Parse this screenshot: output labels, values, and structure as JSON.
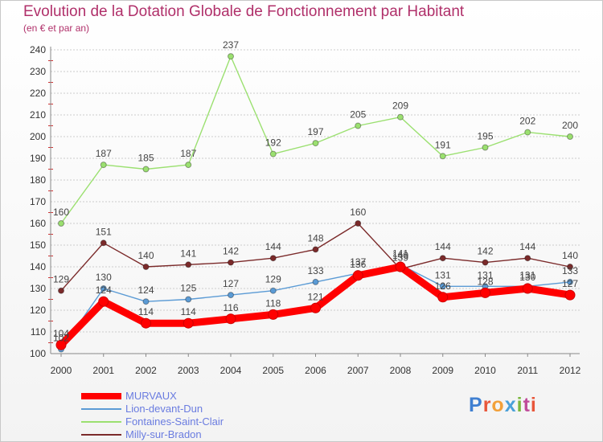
{
  "header": {
    "title": "Evolution de la Dotation Globale de Fonctionnement par Habitant",
    "subtitle": "(en € et par an)"
  },
  "brand": {
    "letters": [
      "P",
      "r",
      "o",
      "x",
      "i",
      "t",
      "i"
    ]
  },
  "colors": {
    "title": "#b0306a",
    "axis_text": "#333333",
    "grid": "#cccccc",
    "value_label": "#444444"
  },
  "chart_data": {
    "type": "line",
    "title": "Evolution de la Dotation Globale de Fonctionnement par Habitant",
    "subtitle": "(en € et par an)",
    "xlabel": "",
    "ylabel": "",
    "ylim": [
      100,
      240
    ],
    "yticks": [
      100,
      110,
      120,
      130,
      140,
      150,
      160,
      170,
      180,
      190,
      200,
      210,
      220,
      230,
      240
    ],
    "x": [
      "2000",
      "2001",
      "2002",
      "2003",
      "2004",
      "2005",
      "2006",
      "2007",
      "2008",
      "2009",
      "2010",
      "2011",
      "2012"
    ],
    "legend_position": "bottom-left",
    "series": [
      {
        "name": "MURVAUX",
        "color": "#ff0000",
        "emphasis": true,
        "values": [
          104,
          124,
          114,
          114,
          116,
          118,
          121,
          136,
          140,
          126,
          128,
          130,
          127
        ]
      },
      {
        "name": "Lion-devant-Dun",
        "color": "#5b9bd5",
        "emphasis": false,
        "values": [
          102,
          130,
          124,
          125,
          127,
          129,
          133,
          137,
          141,
          131,
          131,
          131,
          133
        ]
      },
      {
        "name": "Fontaines-Saint-Clair",
        "color": "#9be070",
        "emphasis": false,
        "values": [
          160,
          187,
          185,
          187,
          237,
          192,
          197,
          205,
          209,
          191,
          195,
          202,
          200
        ]
      },
      {
        "name": "Milly-sur-Bradon",
        "color": "#7b2a2a",
        "emphasis": false,
        "values": [
          129,
          151,
          140,
          141,
          142,
          144,
          148,
          160,
          139,
          144,
          142,
          144,
          140
        ]
      }
    ]
  }
}
